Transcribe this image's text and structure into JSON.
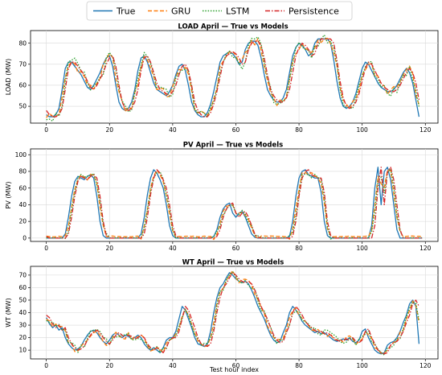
{
  "legend": {
    "entries": [
      {
        "name": "True",
        "color": "#1f77b4",
        "dash": "solid"
      },
      {
        "name": "GRU",
        "color": "#ff7f0e",
        "dash": "dashed"
      },
      {
        "name": "LSTM",
        "color": "#2ca02c",
        "dash": "dotted"
      },
      {
        "name": "Persistence",
        "color": "#d62728",
        "dash": "dashdot"
      }
    ],
    "placement": "top-center"
  },
  "chart_data": [
    {
      "type": "line",
      "title": "LOAD April — True vs Models",
      "xlabel": "",
      "ylabel": "LOAD (MW)",
      "xlim": [
        -5,
        124
      ],
      "ylim": [
        42,
        86
      ],
      "xticks": [
        0,
        20,
        40,
        60,
        80,
        100,
        120
      ],
      "yticks": [
        50,
        60,
        70,
        80
      ],
      "grid": true,
      "true_values": [
        46,
        45,
        45,
        46,
        49,
        58,
        68,
        71,
        71,
        69,
        67,
        65,
        62,
        59,
        58,
        60,
        63,
        66,
        70,
        73,
        74,
        69,
        60,
        52,
        49,
        48,
        49,
        52,
        58,
        67,
        73,
        74,
        71,
        66,
        61,
        58,
        57,
        56,
        55,
        57,
        60,
        65,
        69,
        70,
        67,
        60,
        52,
        48,
        46,
        45,
        45,
        47,
        51,
        57,
        64,
        71,
        74,
        75,
        76,
        75,
        73,
        70,
        71,
        77,
        80,
        81,
        81,
        79,
        73,
        65,
        58,
        55,
        53,
        52,
        52,
        54,
        58,
        66,
        74,
        78,
        80,
        79,
        77,
        74,
        75,
        80,
        82,
        82,
        82,
        82,
        80,
        72,
        62,
        54,
        50,
        49,
        50,
        52,
        56,
        62,
        68,
        71,
        70,
        67,
        64,
        61,
        59,
        58,
        57,
        57,
        58,
        60,
        63,
        66,
        68,
        66,
        61,
        53,
        45
      ]
    },
    {
      "type": "line",
      "title": "PV April — True vs Models",
      "xlabel": "",
      "ylabel": "PV (MW)",
      "xlim": [
        -5,
        124
      ],
      "ylim": [
        -4,
        107
      ],
      "xticks": [
        0,
        20,
        40,
        60,
        80,
        100,
        120
      ],
      "yticks": [
        0,
        20,
        40,
        60,
        80,
        100
      ],
      "grid": true,
      "true_values": [
        0,
        0,
        0,
        0,
        0,
        0,
        5,
        25,
        50,
        68,
        74,
        72,
        70,
        74,
        76,
        72,
        50,
        20,
        3,
        0,
        0,
        0,
        0,
        0,
        0,
        0,
        0,
        0,
        0,
        0,
        5,
        25,
        52,
        72,
        82,
        78,
        70,
        60,
        40,
        15,
        3,
        0,
        0,
        0,
        0,
        0,
        0,
        0,
        0,
        0,
        0,
        0,
        0,
        2,
        10,
        25,
        35,
        40,
        42,
        30,
        25,
        30,
        32,
        25,
        15,
        5,
        1,
        0,
        0,
        0,
        0,
        0,
        0,
        0,
        0,
        0,
        0,
        2,
        20,
        50,
        72,
        80,
        82,
        76,
        74,
        72,
        72,
        55,
        20,
        3,
        0,
        0,
        0,
        0,
        0,
        0,
        0,
        0,
        0,
        0,
        0,
        0,
        0,
        15,
        60,
        85,
        40,
        80,
        85,
        70,
        40,
        10,
        0,
        0,
        0,
        0,
        0,
        0,
        0,
        0
      ]
    },
    {
      "type": "line",
      "title": "WT April — True vs Models",
      "xlabel": "Test hour index",
      "ylabel": "WT (MW)",
      "xlim": [
        -5,
        124
      ],
      "ylim": [
        3,
        77
      ],
      "xticks": [
        0,
        20,
        40,
        60,
        80,
        100,
        120
      ],
      "yticks": [
        10,
        20,
        30,
        40,
        50,
        60,
        70
      ],
      "grid": true,
      "true_values": [
        36,
        31,
        28,
        30,
        26,
        28,
        20,
        15,
        12,
        10,
        11,
        13,
        18,
        22,
        25,
        26,
        24,
        20,
        17,
        15,
        18,
        22,
        24,
        22,
        20,
        22,
        21,
        19,
        20,
        22,
        20,
        15,
        12,
        10,
        12,
        10,
        8,
        12,
        18,
        20,
        20,
        25,
        35,
        45,
        42,
        35,
        28,
        20,
        15,
        14,
        13,
        15,
        25,
        40,
        52,
        60,
        63,
        68,
        72,
        70,
        67,
        65,
        64,
        65,
        63,
        58,
        52,
        45,
        40,
        35,
        28,
        22,
        18,
        16,
        17,
        24,
        30,
        40,
        45,
        42,
        38,
        33,
        30,
        28,
        26,
        24,
        25,
        23,
        24,
        22,
        20,
        18,
        17,
        18,
        19,
        18,
        20,
        17,
        16,
        18,
        25,
        27,
        20,
        15,
        10,
        8,
        7,
        8,
        14,
        16,
        17,
        20,
        25,
        32,
        38,
        47,
        50,
        45,
        15
      ]
    }
  ]
}
